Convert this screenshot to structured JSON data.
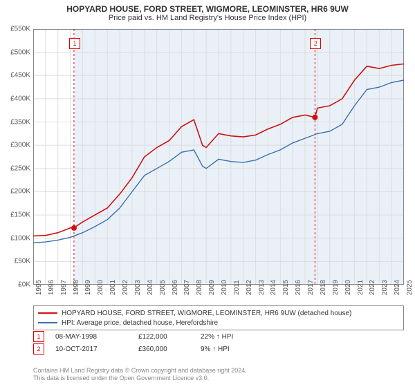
{
  "title": "HOPYARD HOUSE, FORD STREET, WIGMORE, LEOMINSTER, HR6 9UW",
  "subtitle": "Price paid vs. HM Land Registry's House Price Index (HPI)",
  "chart": {
    "type": "line",
    "background_color": "#ffffff",
    "plot_bg": "#e9f0f7",
    "plot_bg_left_inset": 60,
    "grid_color": "#dddddd",
    "axis_color": "#888888",
    "ylim": [
      0,
      550
    ],
    "ytick_step": 50,
    "y_prefix": "£",
    "y_suffix": "K",
    "xlim": [
      1995,
      2025
    ],
    "xtick_step": 1,
    "series": [
      {
        "name": "property",
        "label": "HOPYARD HOUSE, FORD STREET, WIGMORE, LEOMINSTER, HR6 9UW (detached house)",
        "color": "#d01010",
        "width": 1.6,
        "points": [
          [
            1995,
            105
          ],
          [
            1996,
            106
          ],
          [
            1997,
            112
          ],
          [
            1998,
            122
          ],
          [
            1998.5,
            126
          ],
          [
            1999,
            135
          ],
          [
            2000,
            150
          ],
          [
            2001,
            165
          ],
          [
            2002,
            195
          ],
          [
            2003,
            230
          ],
          [
            2004,
            275
          ],
          [
            2005,
            295
          ],
          [
            2006,
            310
          ],
          [
            2007,
            340
          ],
          [
            2008,
            355
          ],
          [
            2008.7,
            300
          ],
          [
            2009,
            295
          ],
          [
            2010,
            325
          ],
          [
            2011,
            320
          ],
          [
            2012,
            318
          ],
          [
            2013,
            322
          ],
          [
            2014,
            335
          ],
          [
            2015,
            345
          ],
          [
            2016,
            360
          ],
          [
            2017,
            365
          ],
          [
            2017.8,
            360
          ],
          [
            2018,
            380
          ],
          [
            2019,
            385
          ],
          [
            2020,
            400
          ],
          [
            2021,
            440
          ],
          [
            2022,
            470
          ],
          [
            2023,
            465
          ],
          [
            2024,
            472
          ],
          [
            2025,
            475
          ]
        ]
      },
      {
        "name": "hpi",
        "label": "HPI: Average price, detached house, Herefordshire",
        "color": "#3a6fb0",
        "width": 1.4,
        "points": [
          [
            1995,
            90
          ],
          [
            1996,
            92
          ],
          [
            1997,
            96
          ],
          [
            1998,
            102
          ],
          [
            1999,
            112
          ],
          [
            2000,
            125
          ],
          [
            2001,
            140
          ],
          [
            2002,
            165
          ],
          [
            2003,
            200
          ],
          [
            2004,
            235
          ],
          [
            2005,
            250
          ],
          [
            2006,
            265
          ],
          [
            2007,
            285
          ],
          [
            2008,
            290
          ],
          [
            2008.7,
            255
          ],
          [
            2009,
            250
          ],
          [
            2010,
            270
          ],
          [
            2011,
            265
          ],
          [
            2012,
            263
          ],
          [
            2013,
            268
          ],
          [
            2014,
            280
          ],
          [
            2015,
            290
          ],
          [
            2016,
            305
          ],
          [
            2017,
            315
          ],
          [
            2018,
            325
          ],
          [
            2019,
            330
          ],
          [
            2020,
            345
          ],
          [
            2021,
            385
          ],
          [
            2022,
            420
          ],
          [
            2023,
            425
          ],
          [
            2024,
            435
          ],
          [
            2025,
            440
          ]
        ]
      }
    ],
    "markers": [
      {
        "id": "1",
        "x": 1998.3,
        "y": 122,
        "line_x": 1998.3,
        "label_y": 530,
        "color": "#d01010"
      },
      {
        "id": "2",
        "x": 2017.8,
        "y": 360,
        "line_x": 2017.8,
        "label_y": 530,
        "color": "#d01010"
      }
    ]
  },
  "sales": [
    {
      "id": "1",
      "date": "08-MAY-1998",
      "price": "£122,000",
      "delta": "22% ↑ HPI"
    },
    {
      "id": "2",
      "date": "10-OCT-2017",
      "price": "£360,000",
      "delta": "9% ↑ HPI"
    }
  ],
  "attribution_line1": "Contains HM Land Registry data © Crown copyright and database right 2024.",
  "attribution_line2": "This data is licensed under the Open Government Licence v3.0."
}
